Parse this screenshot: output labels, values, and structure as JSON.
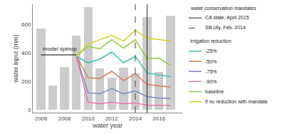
{
  "chart_data": {
    "type": "bar",
    "x": [
      2006,
      2007,
      2008,
      2009,
      2010,
      2011,
      2012,
      2013,
      2014,
      2015,
      2016,
      2017
    ],
    "values": [
      570,
      170,
      300,
      520,
      720,
      290,
      225,
      295,
      255,
      650,
      265,
      660
    ],
    "color": "#cccccc",
    "xlabel": "water year",
    "ylabel": "water input (mm)",
    "xlim": [
      2005.3,
      2018.0
    ],
    "ylim": [
      -20,
      740
    ],
    "xticks": [
      2006,
      2008,
      2010,
      2012,
      2014,
      2016
    ],
    "yticks": [
      0,
      200,
      400,
      600
    ],
    "grid": false,
    "vlines_legend_title": "water conservation mandates",
    "vlines": [
      {
        "name": "CA state, April 2015",
        "x": 2015.0,
        "color": "#222222",
        "line_style": "solid"
      },
      {
        "name": "SB city, Feb. 2014",
        "x": 2014.0,
        "color": "#444444",
        "line_style": "dashed"
      }
    ],
    "series_legend_title": "irrigation reduction",
    "series": [
      {
        "name": "-25%",
        "type": "line",
        "color": "#3cbfb0",
        "x": [
          2009,
          2010,
          2011,
          2012,
          2013,
          2014,
          2015,
          2016,
          2017
        ],
        "values": [
          375,
          330,
          355,
          405,
          330,
          375,
          258,
          245,
          232
        ]
      },
      {
        "name": "-50%",
        "type": "line",
        "color": "#e07858",
        "x": [
          2009,
          2010,
          2011,
          2012,
          2013,
          2014,
          2015,
          2016,
          2017
        ],
        "values": [
          375,
          225,
          220,
          270,
          205,
          252,
          178,
          167,
          160
        ]
      },
      {
        "name": "-75%",
        "type": "line",
        "color": "#7888c0",
        "x": [
          2009,
          2010,
          2011,
          2012,
          2013,
          2014,
          2015,
          2016,
          2017
        ],
        "values": [
          375,
          118,
          112,
          148,
          112,
          132,
          92,
          82,
          80
        ]
      },
      {
        "name": "-90%",
        "type": "line",
        "color": "#e878b0",
        "x": [
          2009,
          2010,
          2011,
          2012,
          2013,
          2014,
          2015,
          2016,
          2017
        ],
        "values": [
          375,
          52,
          42,
          52,
          42,
          47,
          32,
          32,
          30
        ]
      },
      {
        "name": "baseline",
        "type": "line",
        "color": "#90cc44",
        "x": [
          2009,
          2010,
          2011,
          2012,
          2013,
          2014,
          2015,
          2016,
          2017
        ],
        "values": [
          375,
          445,
          428,
          492,
          432,
          492,
          358,
          362,
          312
        ]
      },
      {
        "name": "if no reduction with mandate",
        "type": "line",
        "color": "#d8cc20",
        "x": [
          2009,
          2010,
          2011,
          2012,
          2013,
          2014,
          2015,
          2016,
          2017
        ],
        "values": [
          375,
          462,
          492,
          522,
          482,
          558,
          502,
          492,
          482
        ]
      }
    ],
    "annotations": [
      {
        "text": "model spinup",
        "x": [
          2006.0,
          2009.0
        ],
        "y": 385
      }
    ]
  }
}
